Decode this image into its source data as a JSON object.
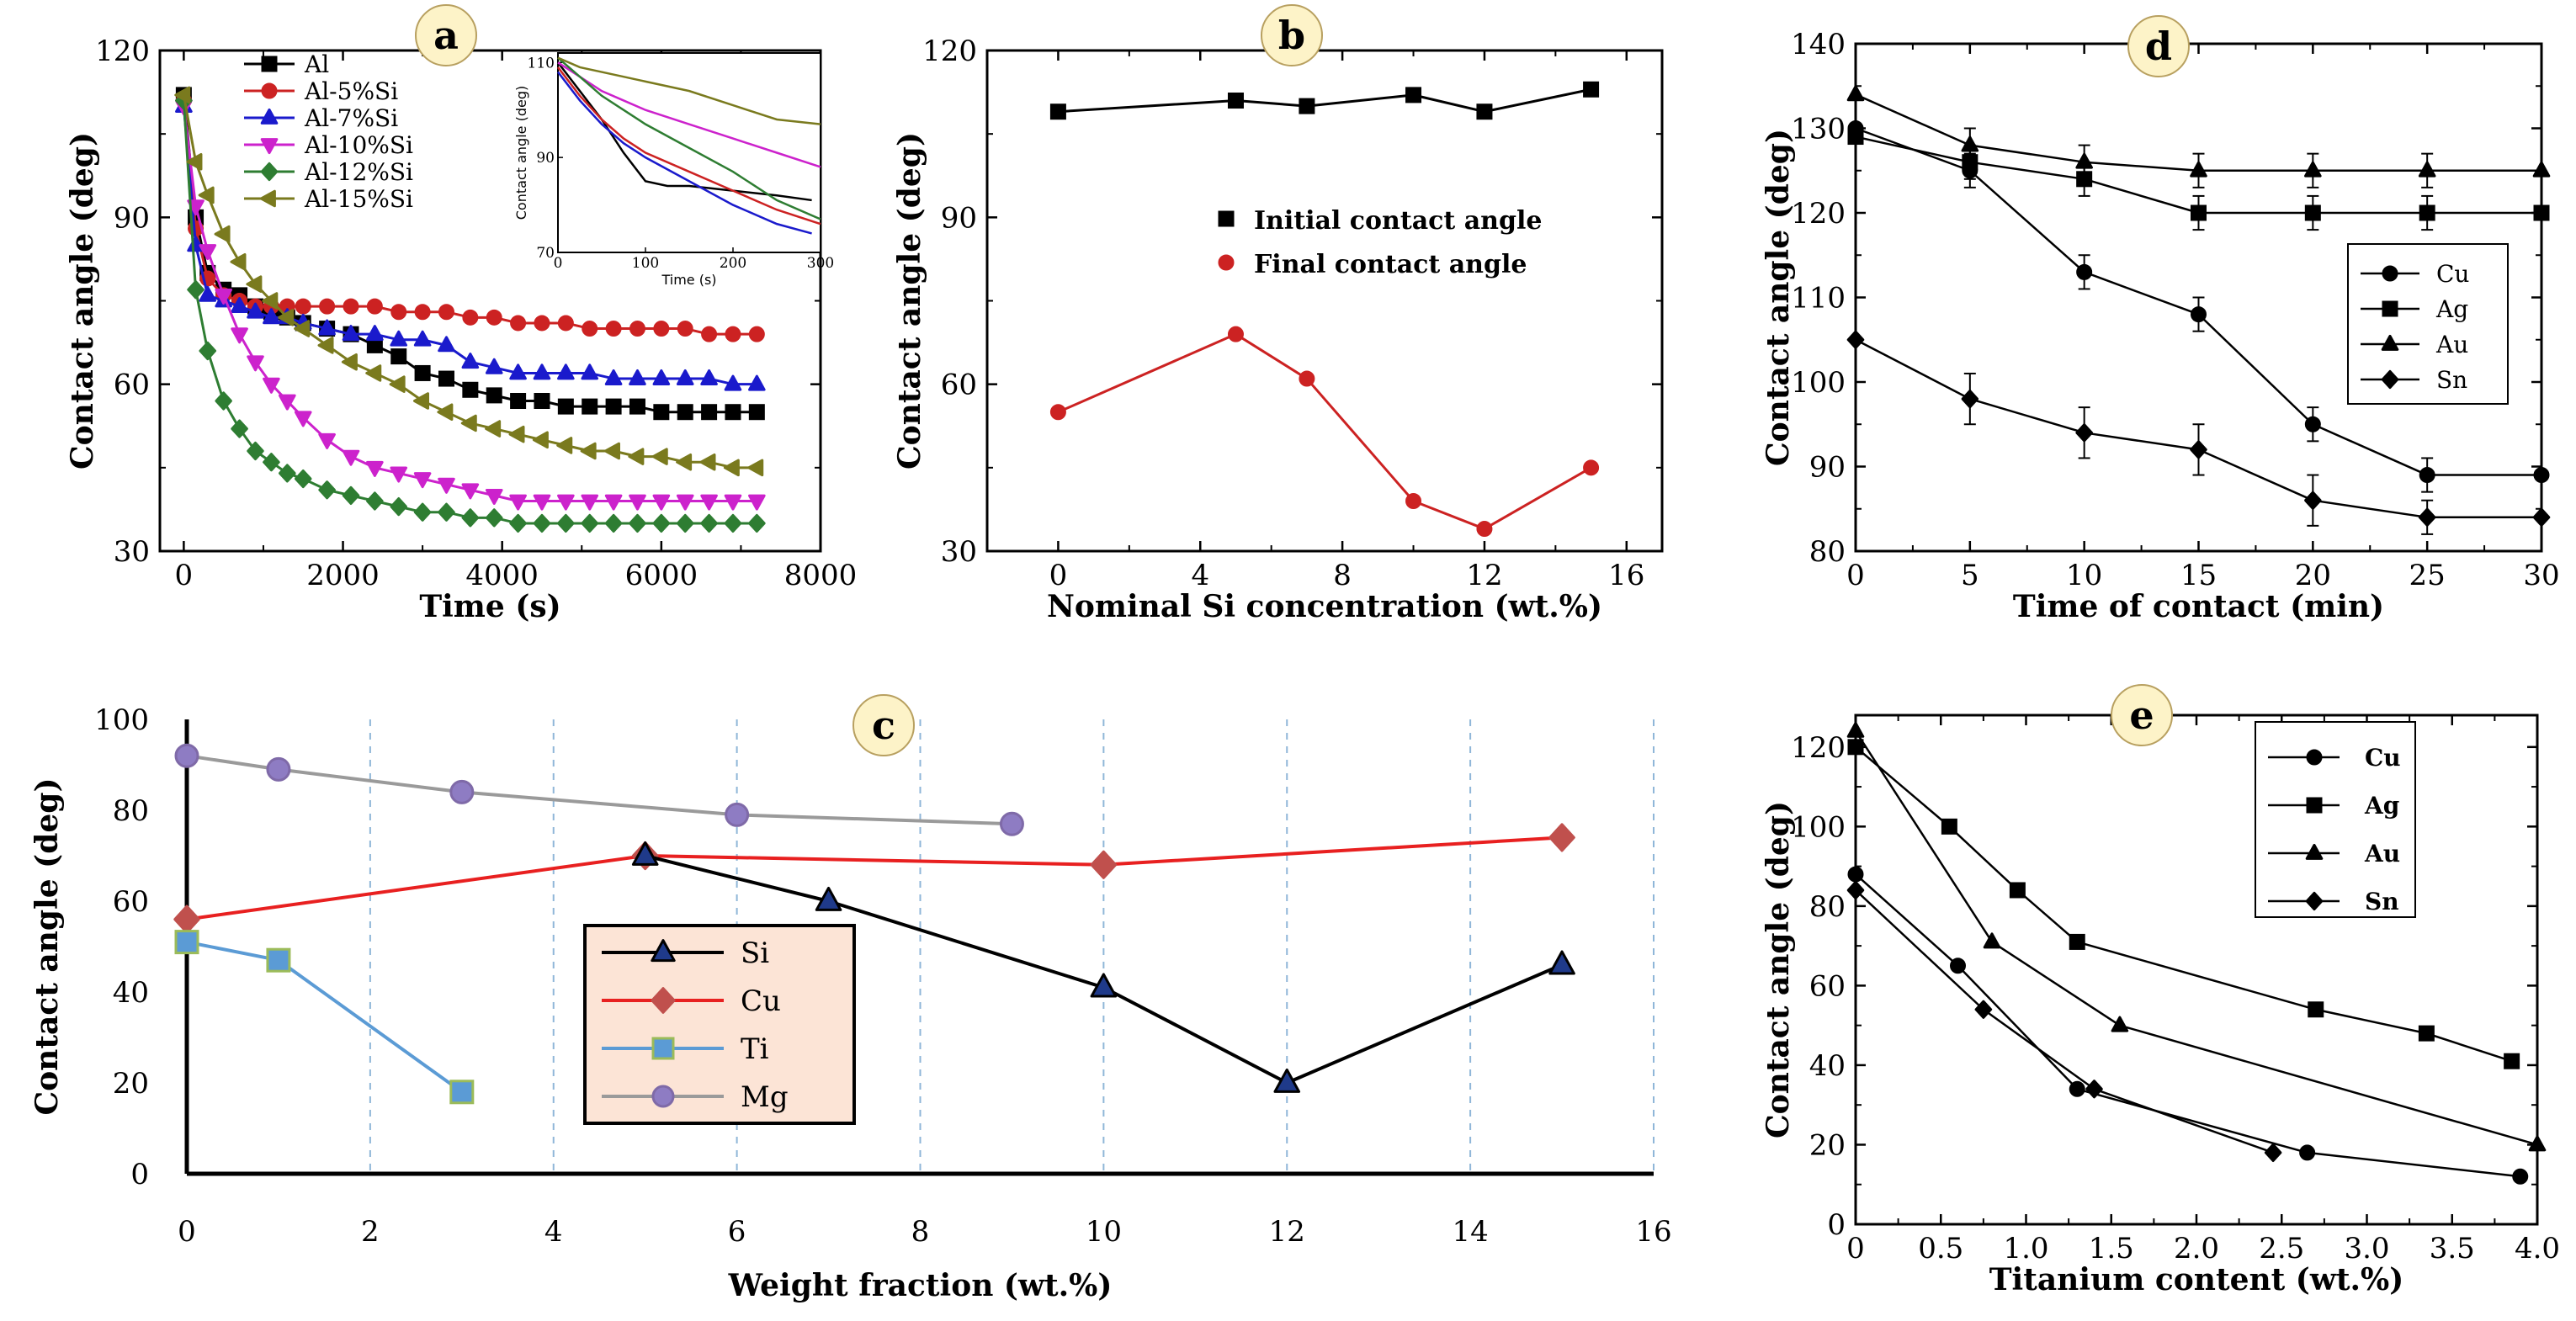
{
  "chart_data": [
    {
      "panel": "a",
      "type": "line",
      "xlabel": "Time (s)",
      "ylabel": "Contact angle (deg)",
      "xlim": [
        -300,
        8000
      ],
      "ylim": [
        30,
        120
      ],
      "xticks": [
        "0",
        "2000",
        "4000",
        "6000",
        "8000"
      ],
      "yticks": [
        "30",
        "60",
        "90",
        "120"
      ],
      "series": [
        {
          "name": "Al",
          "color": "#000000",
          "marker": "square",
          "x": [
            0,
            150,
            300,
            500,
            700,
            900,
            1100,
            1300,
            1500,
            1800,
            2100,
            2400,
            2700,
            3000,
            3300,
            3600,
            3900,
            4200,
            4500,
            4800,
            5100,
            5400,
            5700,
            6000,
            6300,
            6600,
            6900,
            7200
          ],
          "y": [
            112,
            90,
            80,
            77,
            76,
            74,
            73,
            72,
            71,
            70,
            69,
            67,
            65,
            62,
            61,
            59,
            58,
            57,
            57,
            56,
            56,
            56,
            56,
            55,
            55,
            55,
            55,
            55
          ]
        },
        {
          "name": "Al-5%Si",
          "color": "#cc2222",
          "marker": "circle",
          "x": [
            0,
            150,
            300,
            500,
            700,
            900,
            1100,
            1300,
            1500,
            1800,
            2100,
            2400,
            2700,
            3000,
            3300,
            3600,
            3900,
            4200,
            4500,
            4800,
            5100,
            5400,
            5700,
            6000,
            6300,
            6600,
            6900,
            7200
          ],
          "y": [
            111,
            88,
            79,
            76,
            75,
            74,
            74,
            74,
            74,
            74,
            74,
            74,
            73,
            73,
            73,
            72,
            72,
            71,
            71,
            71,
            70,
            70,
            70,
            70,
            70,
            69,
            69,
            69
          ]
        },
        {
          "name": "Al-7%Si",
          "color": "#1a1acc",
          "marker": "triangle",
          "x": [
            0,
            150,
            300,
            500,
            700,
            900,
            1100,
            1300,
            1500,
            1800,
            2100,
            2400,
            2700,
            3000,
            3300,
            3600,
            3900,
            4200,
            4500,
            4800,
            5100,
            5400,
            5700,
            6000,
            6300,
            6600,
            6900,
            7200
          ],
          "y": [
            110,
            85,
            76,
            75,
            74,
            73,
            72,
            72,
            71,
            70,
            69,
            69,
            68,
            68,
            67,
            64,
            63,
            62,
            62,
            62,
            62,
            61,
            61,
            61,
            61,
            61,
            60,
            60
          ]
        },
        {
          "name": "Al-10%Si",
          "color": "#cc22cc",
          "marker": "tri-down",
          "x": [
            0,
            150,
            300,
            500,
            700,
            900,
            1100,
            1300,
            1500,
            1800,
            2100,
            2400,
            2700,
            3000,
            3300,
            3600,
            3900,
            4200,
            4500,
            4800,
            5100,
            5400,
            5700,
            6000,
            6300,
            6600,
            6900,
            7200
          ],
          "y": [
            110,
            92,
            84,
            76,
            69,
            64,
            60,
            57,
            54,
            50,
            47,
            45,
            44,
            43,
            42,
            41,
            40,
            39,
            39,
            39,
            39,
            39,
            39,
            39,
            39,
            39,
            39,
            39
          ]
        },
        {
          "name": "Al-12%Si",
          "color": "#2e7d32",
          "marker": "diamond",
          "x": [
            0,
            150,
            300,
            500,
            700,
            900,
            1100,
            1300,
            1500,
            1800,
            2100,
            2400,
            2700,
            3000,
            3300,
            3600,
            3900,
            4200,
            4500,
            4800,
            5100,
            5400,
            5700,
            6000,
            6300,
            6600,
            6900,
            7200
          ],
          "y": [
            111,
            77,
            66,
            57,
            52,
            48,
            46,
            44,
            43,
            41,
            40,
            39,
            38,
            37,
            37,
            36,
            36,
            35,
            35,
            35,
            35,
            35,
            35,
            35,
            35,
            35,
            35,
            35
          ]
        },
        {
          "name": "Al-15%Si",
          "color": "#7a7a1e",
          "marker": "tri-left",
          "x": [
            0,
            150,
            300,
            500,
            700,
            900,
            1100,
            1300,
            1500,
            1800,
            2100,
            2400,
            2700,
            3000,
            3300,
            3600,
            3900,
            4200,
            4500,
            4800,
            5100,
            5400,
            5700,
            6000,
            6300,
            6600,
            6900,
            7200
          ],
          "y": [
            112,
            100,
            94,
            87,
            82,
            78,
            75,
            72,
            70,
            67,
            64,
            62,
            60,
            57,
            55,
            53,
            52,
            51,
            50,
            49,
            48,
            48,
            47,
            47,
            46,
            46,
            45,
            45
          ]
        }
      ],
      "inset": {
        "xlabel": "Time (s)",
        "ylabel": "Contact angle (deg)",
        "xlim": [
          0,
          300
        ],
        "ylim": [
          70,
          112
        ],
        "xticks": [
          "0",
          "100",
          "200",
          "300"
        ],
        "yticks": [
          "70",
          "90",
          "110"
        ],
        "series": [
          {
            "name": "Al",
            "color": "#000000",
            "x": [
              0,
              25,
              50,
              75,
              100,
              125,
              150,
              200,
              250,
              290
            ],
            "y": [
              110,
              104,
              98,
              91,
              85,
              84,
              84,
              83,
              82,
              81
            ]
          },
          {
            "name": "Al-5%Si",
            "color": "#cc2222",
            "x": [
              0,
              25,
              50,
              75,
              100,
              150,
              200,
              250,
              300
            ],
            "y": [
              109,
              103,
              98,
              94,
              91,
              87,
              83,
              79,
              76
            ]
          },
          {
            "name": "Al-7%Si",
            "color": "#1a1acc",
            "x": [
              0,
              25,
              50,
              75,
              100,
              150,
              200,
              250,
              290
            ],
            "y": [
              108,
              102,
              97,
              93,
              90,
              85,
              80,
              76,
              74
            ]
          },
          {
            "name": "Al-10%Si",
            "color": "#cc22cc",
            "x": [
              0,
              25,
              50,
              75,
              100,
              150,
              200,
              250,
              300
            ],
            "y": [
              110,
              107,
              104,
              102,
              100,
              97,
              94,
              91,
              88
            ]
          },
          {
            "name": "Al-12%Si",
            "color": "#2e7d32",
            "x": [
              0,
              25,
              50,
              75,
              100,
              150,
              200,
              250,
              300
            ],
            "y": [
              111,
              107,
              103,
              100,
              97,
              92,
              87,
              81,
              77
            ]
          },
          {
            "name": "Al-15%Si",
            "color": "#7a7a1e",
            "x": [
              0,
              25,
              50,
              75,
              100,
              150,
              200,
              250,
              300
            ],
            "y": [
              111,
              109,
              108,
              107,
              106,
              104,
              101,
              98,
              97
            ]
          }
        ]
      }
    },
    {
      "panel": "b",
      "type": "line",
      "xlabel": "Nominal Si concentration (wt.%)",
      "ylabel": "Contact angle (deg)",
      "xlim": [
        -2,
        17
      ],
      "ylim": [
        30,
        120
      ],
      "xticks": [
        "0",
        "4",
        "8",
        "12",
        "16"
      ],
      "yticks": [
        "30",
        "60",
        "90",
        "120"
      ],
      "series": [
        {
          "name": "Initial contact angle",
          "color": "#000000",
          "marker": "square",
          "x": [
            0,
            5,
            7,
            10,
            12,
            15
          ],
          "y": [
            109,
            111,
            110,
            112,
            109,
            113
          ]
        },
        {
          "name": "Final contact angle",
          "color": "#cc2222",
          "marker": "circle",
          "x": [
            0,
            5,
            7,
            10,
            12,
            15
          ],
          "y": [
            55,
            69,
            61,
            39,
            34,
            45
          ]
        }
      ]
    },
    {
      "panel": "c",
      "type": "line",
      "xlabel": "Weight fraction (wt.%)",
      "ylabel": "Contact angle (deg)",
      "xlim": [
        0,
        16
      ],
      "ylim": [
        0,
        100
      ],
      "xticks": [
        "0",
        "2",
        "4",
        "6",
        "8",
        "10",
        "12",
        "14",
        "16"
      ],
      "yticks": [
        "0",
        "20",
        "40",
        "60",
        "80",
        "100"
      ],
      "series": [
        {
          "name": "Si",
          "color": "#000000",
          "marker": "triangle",
          "x": [
            5,
            7,
            10,
            12,
            15
          ],
          "y": [
            70,
            60,
            41,
            20,
            46
          ]
        },
        {
          "name": "Cu",
          "color": "#e82020",
          "marker": "diamond",
          "x": [
            0,
            5,
            10,
            15
          ],
          "y": [
            56,
            70,
            68,
            74
          ]
        },
        {
          "name": "Ti",
          "color": "#5b9bd5",
          "marker": "square",
          "x": [
            0,
            1,
            3
          ],
          "y": [
            51,
            47,
            18
          ]
        },
        {
          "name": "Mg",
          "color": "#9a9a9a",
          "marker": "circle",
          "x": [
            0,
            1,
            3,
            6,
            9
          ],
          "y": [
            92,
            89,
            84,
            79,
            77
          ]
        }
      ]
    },
    {
      "panel": "d",
      "type": "line",
      "xlabel": "Time of contact (min)",
      "ylabel": "Contact angle (deg)",
      "xlim": [
        0,
        30
      ],
      "ylim": [
        80,
        140
      ],
      "xticks": [
        "0",
        "5",
        "10",
        "15",
        "20",
        "25",
        "30"
      ],
      "yticks": [
        "80",
        "90",
        "100",
        "110",
        "120",
        "130",
        "140"
      ],
      "series": [
        {
          "name": "Cu",
          "marker": "circle",
          "x": [
            0,
            5,
            10,
            15,
            20,
            25,
            30
          ],
          "y": [
            130,
            125,
            113,
            108,
            95,
            89,
            89
          ],
          "err": [
            0,
            2,
            2,
            2,
            2,
            2,
            0
          ]
        },
        {
          "name": "Ag",
          "marker": "square",
          "x": [
            0,
            5,
            10,
            15,
            20,
            25,
            30
          ],
          "y": [
            129,
            126,
            124,
            120,
            120,
            120,
            120
          ],
          "err": [
            0,
            2,
            2,
            2,
            2,
            2,
            0
          ]
        },
        {
          "name": "Au",
          "marker": "triangle",
          "x": [
            0,
            5,
            10,
            15,
            20,
            25,
            30
          ],
          "y": [
            134,
            128,
            126,
            125,
            125,
            125,
            125
          ],
          "err": [
            0,
            2,
            2,
            2,
            2,
            2,
            0
          ]
        },
        {
          "name": "Sn",
          "marker": "diamond",
          "x": [
            0,
            5,
            10,
            15,
            20,
            25,
            30
          ],
          "y": [
            105,
            98,
            94,
            92,
            86,
            84,
            84
          ],
          "err": [
            0,
            3,
            3,
            3,
            3,
            2,
            0
          ]
        }
      ]
    },
    {
      "panel": "e",
      "type": "line",
      "xlabel": "Titanium content (wt.%)",
      "ylabel": "Contact angle (deg)",
      "xlim": [
        0,
        4
      ],
      "ylim": [
        0,
        128
      ],
      "xticks": [
        "0",
        "0.5",
        "1.0",
        "1.5",
        "2.0",
        "2.5",
        "3.0",
        "3.5",
        "4.0"
      ],
      "yticks": [
        "0",
        "20",
        "40",
        "60",
        "80",
        "100",
        "120"
      ],
      "series": [
        {
          "name": "Cu",
          "marker": "circle",
          "x": [
            0,
            0.6,
            1.3,
            2.65,
            3.9
          ],
          "y": [
            88,
            65,
            34,
            18,
            12
          ]
        },
        {
          "name": "Ag",
          "marker": "square",
          "x": [
            0,
            0.55,
            0.95,
            1.3,
            2.7,
            3.35,
            3.85
          ],
          "y": [
            120,
            100,
            84,
            71,
            54,
            48,
            41
          ]
        },
        {
          "name": "Au",
          "marker": "triangle",
          "x": [
            0,
            0.8,
            1.55,
            4.0
          ],
          "y": [
            124,
            71,
            50,
            20
          ]
        },
        {
          "name": "Sn",
          "marker": "diamond",
          "x": [
            0,
            0.75,
            1.4,
            2.45
          ],
          "y": [
            84,
            54,
            34,
            18
          ]
        }
      ]
    }
  ],
  "badges": [
    "a",
    "b",
    "c",
    "d",
    "e"
  ]
}
